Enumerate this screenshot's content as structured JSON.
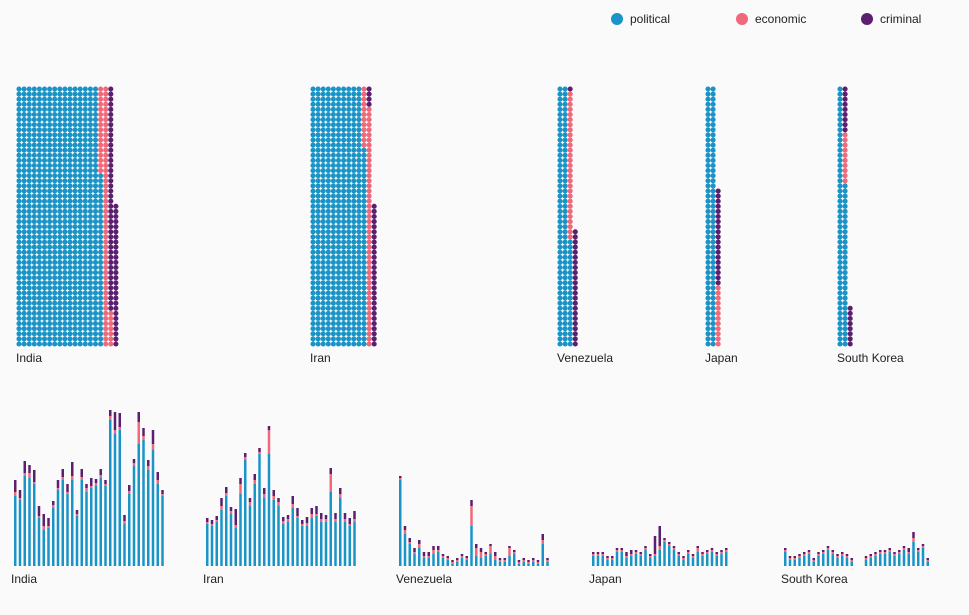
{
  "legend": [
    {
      "key": "political",
      "label": "political",
      "color": "#1a94c7"
    },
    {
      "key": "economic",
      "label": "economic",
      "color": "#f0697a"
    },
    {
      "key": "criminal",
      "label": "criminal",
      "color": "#5c1f70"
    }
  ],
  "chart_data": [
    {
      "type": "waffle",
      "legend_position": "top-right",
      "categories": [
        "India",
        "Iran",
        "Venezuela",
        "Japan",
        "South Korea"
      ],
      "series": [
        {
          "name": "political",
          "values": [
            12744,
            8235,
            1848,
            1533,
            1248
          ]
        },
        {
          "name": "economic",
          "values": [
            1125,
            885,
            433,
            184,
            150
          ]
        },
        {
          "name": "criminal",
          "values": [
            1080,
            475,
            366,
            286,
            260
          ]
        }
      ]
    },
    {
      "type": "bar",
      "stacked": true,
      "legend_position": "top-right",
      "grid": false,
      "panels": [
        {
          "category": "India",
          "series": [
            {
              "name": "political",
              "values": [
                70,
                66,
                90,
                88,
                82,
                48,
                36,
                38,
                58,
                76,
                86,
                72,
                86,
                50,
                86,
                74,
                78,
                80,
                88,
                80,
                146,
                132,
                136,
                42,
                72,
                100,
                122,
                126,
                96,
                116,
                82,
                70
              ]
            },
            {
              "name": "economic",
              "values": [
                4,
                2,
                3,
                5,
                2,
                2,
                4,
                2,
                3,
                2,
                3,
                2,
                4,
                2,
                3,
                4,
                2,
                3,
                3,
                2,
                4,
                4,
                3,
                3,
                3,
                3,
                22,
                4,
                4,
                6,
                4,
                2
              ]
            },
            {
              "name": "criminal",
              "values": [
                12,
                8,
                12,
                8,
                12,
                10,
                12,
                8,
                4,
                8,
                8,
                8,
                14,
                4,
                8,
                4,
                8,
                4,
                6,
                4,
                6,
                18,
                14,
                6,
                6,
                4,
                10,
                8,
                6,
                14,
                8,
                4
              ]
            }
          ]
        },
        {
          "category": "Iran",
          "series": [
            {
              "name": "political",
              "values": [
                42,
                40,
                44,
                56,
                70,
                52,
                38,
                72,
                106,
                60,
                82,
                112,
                68,
                112,
                66,
                60,
                42,
                44,
                58,
                48,
                40,
                40,
                48,
                50,
                44,
                44,
                74,
                44,
                68,
                44,
                40,
                44
              ]
            },
            {
              "name": "economic",
              "values": [
                2,
                2,
                2,
                4,
                3,
                3,
                3,
                10,
                3,
                4,
                4,
                2,
                4,
                24,
                4,
                4,
                3,
                3,
                4,
                2,
                2,
                3,
                4,
                2,
                3,
                3,
                18,
                3,
                4,
                3,
                2,
                3
              ]
            },
            {
              "name": "criminal",
              "values": [
                4,
                4,
                4,
                8,
                6,
                4,
                16,
                6,
                4,
                4,
                6,
                4,
                6,
                4,
                6,
                4,
                4,
                4,
                8,
                8,
                4,
                6,
                6,
                8,
                6,
                4,
                6,
                6,
                6,
                6,
                6,
                8
              ]
            }
          ]
        },
        {
          "category": "Venezuela",
          "series": [
            {
              "name": "political",
              "values": [
                86,
                32,
                22,
                12,
                18,
                8,
                8,
                12,
                14,
                8,
                6,
                2,
                4,
                8,
                6,
                40,
                10,
                8,
                10,
                12,
                6,
                4,
                4,
                10,
                12,
                2,
                4,
                2,
                4,
                2,
                22,
                4
              ]
            },
            {
              "name": "economic",
              "values": [
                2,
                4,
                2,
                2,
                4,
                2,
                2,
                4,
                2,
                2,
                2,
                2,
                2,
                2,
                2,
                20,
                8,
                6,
                2,
                8,
                4,
                2,
                2,
                8,
                2,
                2,
                2,
                2,
                2,
                2,
                4,
                2
              ]
            },
            {
              "name": "criminal",
              "values": [
                2,
                4,
                4,
                4,
                4,
                4,
                4,
                4,
                4,
                2,
                2,
                2,
                2,
                2,
                2,
                6,
                4,
                4,
                2,
                2,
                4,
                2,
                2,
                2,
                2,
                2,
                2,
                2,
                2,
                2,
                6,
                2
              ]
            }
          ]
        },
        {
          "category": "Japan",
          "series": [
            {
              "name": "political",
              "values": [
                10,
                10,
                10,
                6,
                6,
                14,
                14,
                8,
                10,
                12,
                10,
                16,
                8,
                10,
                16,
                24,
                20,
                16,
                10,
                6,
                12,
                8,
                14,
                10,
                12,
                14,
                10,
                12,
                14
              ]
            },
            {
              "name": "economic",
              "values": [
                2,
                2,
                2,
                2,
                2,
                2,
                2,
                2,
                2,
                2,
                2,
                2,
                2,
                2,
                4,
                2,
                2,
                2,
                2,
                2,
                2,
                2,
                4,
                2,
                2,
                2,
                2,
                2,
                2
              ]
            },
            {
              "name": "criminal",
              "values": [
                2,
                2,
                2,
                2,
                2,
                2,
                2,
                4,
                4,
                2,
                2,
                2,
                2,
                18,
                20,
                2,
                2,
                2,
                2,
                2,
                2,
                2,
                2,
                2,
                2,
                2,
                2,
                2,
                2
              ]
            }
          ]
        },
        {
          "category": "South Korea",
          "series": [
            {
              "name": "political",
              "values": [
                14,
                6,
                6,
                8,
                10,
                12,
                4,
                10,
                12,
                16,
                12,
                8,
                10,
                8,
                4,
                0,
                0,
                6,
                8,
                10,
                12,
                12,
                14,
                10,
                12,
                16,
                12,
                24,
                14,
                18,
                4
              ]
            },
            {
              "name": "economic",
              "values": [
                2,
                2,
                2,
                2,
                2,
                2,
                2,
                2,
                2,
                2,
                2,
                2,
                2,
                2,
                2,
                0,
                0,
                2,
                2,
                2,
                2,
                2,
                2,
                2,
                2,
                2,
                2,
                4,
                2,
                2,
                2
              ]
            },
            {
              "name": "criminal",
              "values": [
                2,
                2,
                2,
                2,
                2,
                2,
                2,
                2,
                2,
                2,
                2,
                2,
                2,
                2,
                2,
                0,
                0,
                2,
                2,
                2,
                2,
                2,
                2,
                2,
                2,
                2,
                4,
                6,
                2,
                2,
                2
              ]
            }
          ]
        }
      ]
    }
  ]
}
